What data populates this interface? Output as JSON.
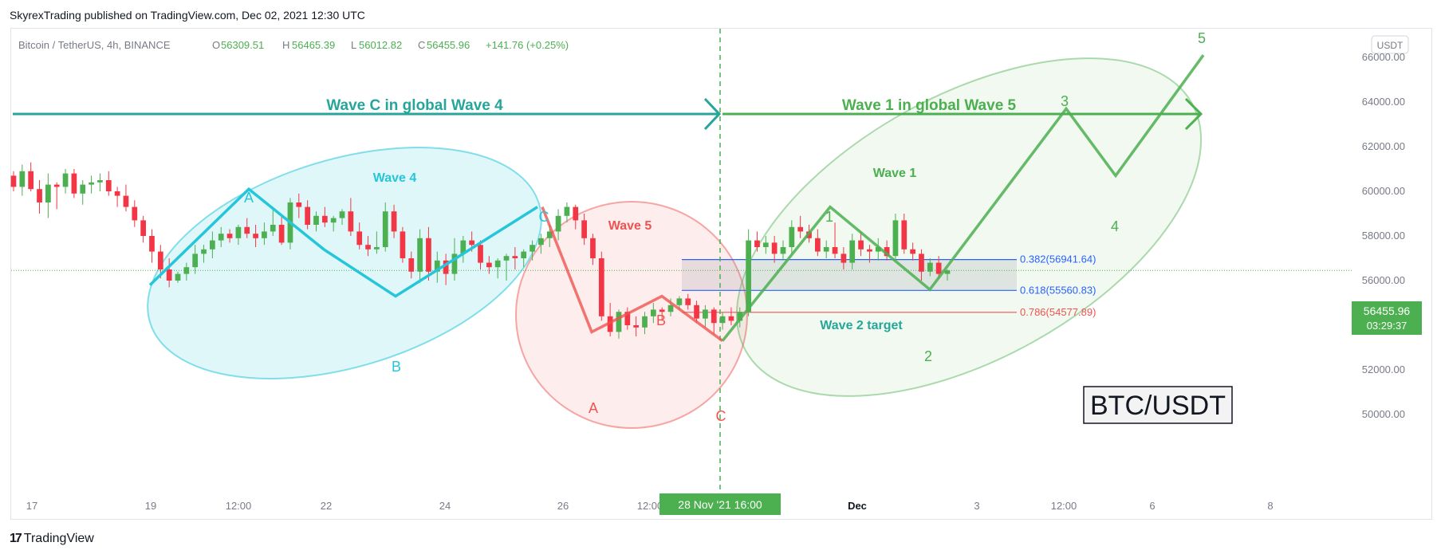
{
  "header": {
    "published_line": "SkyrexTrading published on TradingView.com, Dec 02, 2021 12:30 UTC"
  },
  "legend": {
    "symbol": "Bitcoin / TetherUS, 4h, BINANCE",
    "o_label": "O",
    "o": "56309.51",
    "h_label": "H",
    "h": "56465.39",
    "l_label": "L",
    "l": "56012.82",
    "c_label": "C",
    "c": "56455.96",
    "change": "+141.76 (+0.25%)"
  },
  "currency_badge": "USDT",
  "price_label": {
    "price": "56455.96",
    "countdown": "03:29:37"
  },
  "crosshair_label": "28 Nov '21  16:00",
  "watermark": "BTC/USDT",
  "footer": {
    "brand": "TradingView"
  },
  "colors": {
    "up": "#4caf50",
    "down": "#f23645",
    "wave_c": "#26a69a",
    "wave_cyan": "#26c6da",
    "wave_red": "#ef5350",
    "wave_green": "#4caf50",
    "fib_blue": "#2962ff"
  },
  "annotations": {
    "wave_c_global": "Wave C in global Wave 4",
    "wave_1_global": "Wave 1 in global Wave 5",
    "wave4": "Wave 4",
    "wave5": "Wave 5",
    "wave1": "Wave 1",
    "wave2_target": "Wave 2 target",
    "labels_cyan": [
      "A",
      "B",
      "C"
    ],
    "labels_red": [
      "A",
      "B",
      "C"
    ],
    "labels_green": [
      "1",
      "2",
      "3",
      "4",
      "5"
    ]
  },
  "chart_data": {
    "type": "candlestick",
    "title": "Bitcoin / TetherUS, 4h, BINANCE",
    "ylim": [
      49000,
      67000
    ],
    "y_ticks": [
      "66000.00",
      "64000.00",
      "62000.00",
      "60000.00",
      "58000.00",
      "56000.00",
      "54000.00",
      "52000.00",
      "50000.00"
    ],
    "x_ticks": [
      "17",
      "19",
      "12:00",
      "22",
      "24",
      "26",
      "12:00",
      "Dec",
      "3",
      "12:00",
      "6",
      "8"
    ],
    "fib_levels": [
      {
        "label": "0.382(56941.64)",
        "value": 56941.64
      },
      {
        "label": "0.618(55560.83)",
        "value": 55560.83
      },
      {
        "label": "0.786(54577.89)",
        "value": 54577.89
      }
    ],
    "last_price": 56455.96,
    "candles": [
      [
        60700,
        60900,
        60000,
        60200
      ],
      [
        60200,
        61200,
        59800,
        60900
      ],
      [
        60900,
        61300,
        60000,
        60100
      ],
      [
        60100,
        60500,
        59000,
        59500
      ],
      [
        59500,
        60800,
        58800,
        60300
      ],
      [
        60300,
        60400,
        59200,
        60200
      ],
      [
        60200,
        61000,
        59900,
        60800
      ],
      [
        60800,
        61000,
        59700,
        59900
      ],
      [
        59900,
        60500,
        59400,
        60300
      ],
      [
        60300,
        60700,
        59900,
        60400
      ],
      [
        60400,
        60800,
        60000,
        60500
      ],
      [
        60500,
        60900,
        59800,
        60000
      ],
      [
        60000,
        60200,
        59300,
        59800
      ],
      [
        59800,
        60300,
        59100,
        59300
      ],
      [
        59300,
        59600,
        58400,
        58700
      ],
      [
        58700,
        58900,
        57700,
        58000
      ],
      [
        58000,
        58300,
        56800,
        57300
      ],
      [
        57300,
        57600,
        56100,
        56500
      ],
      [
        56500,
        57000,
        55700,
        56000
      ],
      [
        56000,
        56400,
        55900,
        56300
      ],
      [
        56300,
        56800,
        56000,
        56600
      ],
      [
        56600,
        57600,
        56300,
        57200
      ],
      [
        57200,
        57600,
        56800,
        57400
      ],
      [
        57400,
        58200,
        57000,
        57800
      ],
      [
        57800,
        58400,
        57500,
        58100
      ],
      [
        58100,
        58300,
        57700,
        57900
      ],
      [
        57900,
        58500,
        57600,
        58400
      ],
      [
        58400,
        58800,
        57900,
        58100
      ],
      [
        58100,
        58500,
        57500,
        57900
      ],
      [
        57900,
        58600,
        57600,
        58200
      ],
      [
        58200,
        59300,
        58000,
        58500
      ],
      [
        58500,
        58900,
        57600,
        57700
      ],
      [
        57700,
        59700,
        57400,
        59500
      ],
      [
        59500,
        59900,
        58800,
        59300
      ],
      [
        59300,
        59600,
        58300,
        58500
      ],
      [
        58500,
        59100,
        58200,
        58900
      ],
      [
        58900,
        59300,
        58400,
        58600
      ],
      [
        58600,
        58900,
        58200,
        58800
      ],
      [
        58800,
        59200,
        58500,
        59100
      ],
      [
        59100,
        59700,
        58000,
        58200
      ],
      [
        58200,
        58600,
        57400,
        57600
      ],
      [
        57600,
        58000,
        57100,
        57400
      ],
      [
        57400,
        58200,
        57200,
        57500
      ],
      [
        57500,
        59500,
        57300,
        59100
      ],
      [
        59100,
        59400,
        57900,
        58200
      ],
      [
        58200,
        58400,
        56800,
        57000
      ],
      [
        57000,
        57300,
        56100,
        56400
      ],
      [
        56400,
        58300,
        55900,
        57900
      ],
      [
        57900,
        58400,
        56000,
        56400
      ],
      [
        56400,
        57300,
        55900,
        56900
      ],
      [
        56900,
        57200,
        55800,
        56300
      ],
      [
        56300,
        57900,
        56000,
        57200
      ],
      [
        57200,
        58000,
        56800,
        57800
      ],
      [
        57800,
        58200,
        57300,
        57600
      ],
      [
        57600,
        57800,
        56500,
        56800
      ],
      [
        56800,
        57100,
        56300,
        56600
      ],
      [
        56600,
        57000,
        56100,
        56900
      ],
      [
        56900,
        57200,
        56000,
        57100
      ],
      [
        57100,
        57500,
        56500,
        57000
      ],
      [
        57000,
        57400,
        56600,
        57300
      ],
      [
        57300,
        57800,
        56900,
        57600
      ],
      [
        57600,
        58100,
        57200,
        57900
      ],
      [
        57900,
        58500,
        57500,
        58200
      ],
      [
        58200,
        59200,
        57800,
        58900
      ],
      [
        58900,
        59500,
        58600,
        59300
      ],
      [
        59300,
        59400,
        58300,
        58700
      ],
      [
        58700,
        59000,
        57600,
        57900
      ],
      [
        57900,
        58100,
        56700,
        57000
      ],
      [
        57000,
        57300,
        54200,
        54400
      ],
      [
        54400,
        55000,
        53500,
        53700
      ],
      [
        53700,
        54700,
        53400,
        54600
      ],
      [
        54600,
        54800,
        53800,
        54000
      ],
      [
        54000,
        54400,
        53500,
        53900
      ],
      [
        53900,
        54600,
        53600,
        54400
      ],
      [
        54400,
        55000,
        54100,
        54700
      ],
      [
        54700,
        54800,
        54200,
        54600
      ],
      [
        54600,
        55200,
        54400,
        54900
      ],
      [
        54900,
        55300,
        54700,
        55200
      ],
      [
        55200,
        55400,
        54700,
        54900
      ],
      [
        54900,
        55100,
        54100,
        54300
      ],
      [
        54300,
        54900,
        53900,
        54700
      ],
      [
        54700,
        54800,
        53600,
        54100
      ],
      [
        54100,
        54600,
        53800,
        54400
      ],
      [
        54400,
        54800,
        54000,
        54200
      ],
      [
        54200,
        54800,
        53900,
        54600
      ],
      [
        54600,
        58300,
        54400,
        57800
      ],
      [
        57800,
        58200,
        57300,
        57500
      ],
      [
        57500,
        58000,
        57200,
        57700
      ],
      [
        57700,
        58000,
        56800,
        57200
      ],
      [
        57200,
        57800,
        56900,
        57500
      ],
      [
        57500,
        58700,
        57200,
        58400
      ],
      [
        58400,
        58900,
        57900,
        58200
      ],
      [
        58200,
        58500,
        57700,
        57900
      ],
      [
        57900,
        58300,
        57100,
        57300
      ],
      [
        57300,
        57800,
        57000,
        57500
      ],
      [
        57500,
        58600,
        57000,
        57200
      ],
      [
        57200,
        57500,
        56500,
        56800
      ],
      [
        56800,
        58100,
        56500,
        57800
      ],
      [
        57800,
        58200,
        57100,
        57400
      ],
      [
        57400,
        57600,
        56800,
        57300
      ],
      [
        57300,
        57900,
        56900,
        57500
      ],
      [
        57500,
        57800,
        56900,
        57100
      ],
      [
        57100,
        59000,
        56900,
        58700
      ],
      [
        58700,
        59000,
        57200,
        57400
      ],
      [
        57400,
        57700,
        56900,
        57200
      ],
      [
        57200,
        57400,
        56000,
        56400
      ],
      [
        56400,
        57000,
        56200,
        56800
      ],
      [
        56800,
        57100,
        56100,
        56300
      ],
      [
        56300,
        56500,
        56000,
        56456
      ]
    ],
    "wave_paths": {
      "cyan": [
        [
          0,
          55800
        ],
        [
          1,
          60100
        ],
        [
          2,
          57400
        ],
        [
          3,
          55300
        ],
        [
          4,
          59300
        ]
      ],
      "red": [
        [
          0,
          59300
        ],
        [
          1,
          53700
        ],
        [
          2,
          55300
        ],
        [
          3,
          53300
        ]
      ],
      "green": [
        [
          0,
          53300
        ],
        [
          1,
          59300
        ],
        [
          2,
          55600
        ],
        [
          3,
          63700
        ],
        [
          4,
          60700
        ],
        [
          5,
          66100
        ]
      ]
    }
  }
}
